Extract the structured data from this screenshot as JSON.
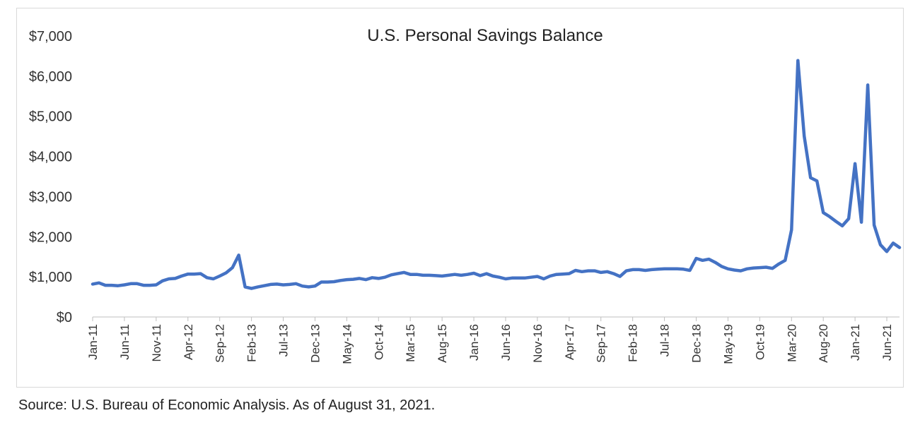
{
  "chart_data": {
    "type": "line",
    "title": "U.S. Personal Savings Balance",
    "xlabel": "",
    "ylabel": "",
    "ylim": [
      0,
      7000
    ],
    "y_ticks": [
      "$0",
      "$1,000",
      "$2,000",
      "$3,000",
      "$4,000",
      "$5,000",
      "$6,000",
      "$7,000"
    ],
    "y_tick_values": [
      0,
      1000,
      2000,
      3000,
      4000,
      5000,
      6000,
      7000
    ],
    "x_tick_labels": [
      "Jan-11",
      "Jun-11",
      "Nov-11",
      "Apr-12",
      "Sep-12",
      "Feb-13",
      "Jul-13",
      "Dec-13",
      "May-14",
      "Oct-14",
      "Mar-15",
      "Aug-15",
      "Jan-16",
      "Jun-16",
      "Nov-16",
      "Apr-17",
      "Sep-17",
      "Feb-18",
      "Jul-18",
      "Dec-18",
      "May-19",
      "Oct-19",
      "Mar-20",
      "Aug-20",
      "Jan-21",
      "Jun-21"
    ],
    "x_tick_index_step": 5,
    "series": [
      {
        "name": "U.S. Personal Savings Balance",
        "color": "#4472c4",
        "values": [
          820,
          850,
          790,
          790,
          780,
          800,
          830,
          830,
          790,
          790,
          800,
          900,
          950,
          960,
          1020,
          1070,
          1070,
          1080,
          980,
          950,
          1020,
          1100,
          1230,
          1540,
          750,
          710,
          750,
          780,
          810,
          820,
          800,
          810,
          830,
          770,
          750,
          770,
          870,
          870,
          880,
          910,
          930,
          940,
          960,
          930,
          980,
          960,
          990,
          1050,
          1080,
          1110,
          1060,
          1060,
          1040,
          1040,
          1030,
          1020,
          1040,
          1060,
          1040,
          1060,
          1090,
          1030,
          1080,
          1020,
          990,
          950,
          970,
          970,
          970,
          990,
          1010,
          950,
          1020,
          1060,
          1070,
          1080,
          1160,
          1130,
          1150,
          1150,
          1110,
          1130,
          1080,
          1010,
          1150,
          1180,
          1180,
          1160,
          1180,
          1190,
          1200,
          1200,
          1200,
          1190,
          1160,
          1460,
          1410,
          1440,
          1360,
          1260,
          1200,
          1170,
          1150,
          1200,
          1220,
          1230,
          1240,
          1210,
          1320,
          1410,
          2170,
          6390,
          4510,
          3470,
          3390,
          2600,
          2500,
          2380,
          2270,
          2450,
          3820,
          2360,
          5780,
          2290,
          1800,
          1630,
          1840,
          1730
        ]
      }
    ]
  },
  "source_note": "Source: U.S. Bureau of Economic Analysis. As of August 31, 2021."
}
